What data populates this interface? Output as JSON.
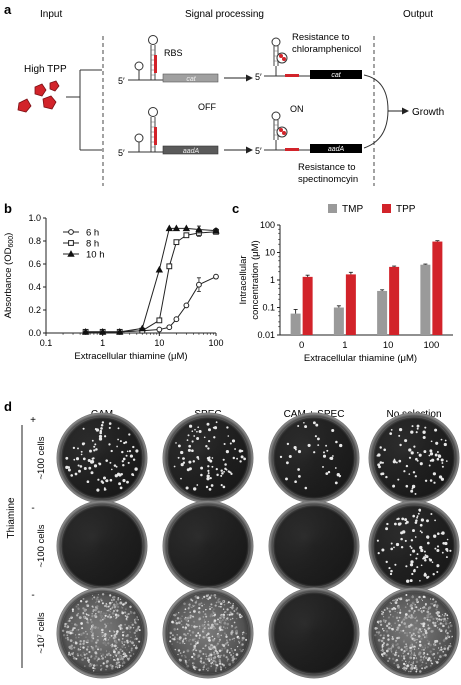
{
  "panel_a": {
    "label": "a",
    "headers": {
      "input": "Input",
      "signal": "Signal processing",
      "output": "Output"
    },
    "input_label": "High TPP",
    "rbs": "RBS",
    "off": "OFF",
    "on": "ON",
    "five_prime": "5′",
    "gene_cat": "cat",
    "gene_aadA": "aadA",
    "resist_cam_1": "Resistance to",
    "resist_cam_2": "chloramphenicol",
    "resist_spec_1": "Resistance to",
    "resist_spec_2": "spectinomcyin",
    "growth": "Growth",
    "colors": {
      "tpp": "#d2232a",
      "gene_off": "#a0a0a0",
      "gene_on": "#000000"
    }
  },
  "panel_b": {
    "label": "b"
  },
  "panel_c": {
    "label": "c"
  },
  "panel_d": {
    "label": "d",
    "columns": [
      "CAM",
      "SPEC",
      "CAM + SPEC",
      "No selection"
    ],
    "thiamine": "Thiamine",
    "rows": [
      {
        "sign": "+",
        "cells": "~100 cells",
        "colonies": [
          100,
          90,
          40,
          80
        ]
      },
      {
        "sign": "-",
        "cells": "~100 cells",
        "colonies": [
          0,
          0,
          0,
          100
        ]
      },
      {
        "sign": "-",
        "cells": "~10⁷ cells",
        "colonies": [
          "lawn",
          "lawn",
          0,
          "lawn"
        ]
      }
    ]
  },
  "chart_data": [
    {
      "panel": "b",
      "type": "line",
      "xlabel": "Extracellular thiamine (μM)",
      "ylabel": "Absorbance (OD600)",
      "xscale": "log",
      "xlim": [
        0.1,
        100
      ],
      "ylim": [
        0,
        1.0
      ],
      "xticks": [
        "0.1",
        "1",
        "10",
        "100"
      ],
      "yticks": [
        "0.0",
        "0.2",
        "0.4",
        "0.6",
        "0.8",
        "1.0"
      ],
      "legend_position": "top-left",
      "x": [
        0.5,
        1,
        2,
        5,
        10,
        15,
        20,
        30,
        50,
        100
      ],
      "series": [
        {
          "name": "6 h",
          "marker": "circle",
          "values": [
            0.01,
            0.01,
            0.01,
            0.02,
            0.03,
            0.05,
            0.12,
            0.24,
            0.42,
            0.49
          ],
          "error": [
            0,
            0,
            0,
            0,
            0,
            0,
            0,
            0,
            0.06,
            0
          ]
        },
        {
          "name": "8 h",
          "marker": "square",
          "values": [
            0.01,
            0.01,
            0.01,
            0.02,
            0.11,
            0.58,
            0.79,
            0.85,
            0.87,
            0.88
          ],
          "error": [
            0,
            0,
            0,
            0,
            0,
            0,
            0,
            0,
            0.03,
            0.02
          ]
        },
        {
          "name": "10 h",
          "marker": "triangle",
          "values": [
            0.01,
            0.01,
            0.01,
            0.04,
            0.55,
            0.91,
            0.91,
            0.91,
            0.9,
            0.89
          ],
          "error": [
            0,
            0,
            0,
            0,
            0,
            0,
            0,
            0,
            0.03,
            0.02
          ]
        }
      ]
    },
    {
      "panel": "c",
      "type": "bar",
      "xlabel": "Extracellular thiamine (μM)",
      "ylabel": "Intracellular concentration (μM)",
      "yscale": "log",
      "ylim": [
        0.01,
        100
      ],
      "yticks": [
        "0.01",
        "0.1",
        "1",
        "10",
        "100"
      ],
      "categories": [
        "0",
        "1",
        "10",
        "100"
      ],
      "legend_position": "top",
      "series": [
        {
          "name": "TMP",
          "color": "#9a9a9a",
          "values": [
            0.06,
            0.1,
            0.4,
            3.6
          ],
          "error": [
            0.025,
            0.015,
            0.04,
            0.2
          ]
        },
        {
          "name": "TPP",
          "color": "#d2232a",
          "values": [
            1.3,
            1.6,
            3.0,
            25
          ],
          "error": [
            0.2,
            0.3,
            0.2,
            2
          ]
        }
      ]
    }
  ]
}
